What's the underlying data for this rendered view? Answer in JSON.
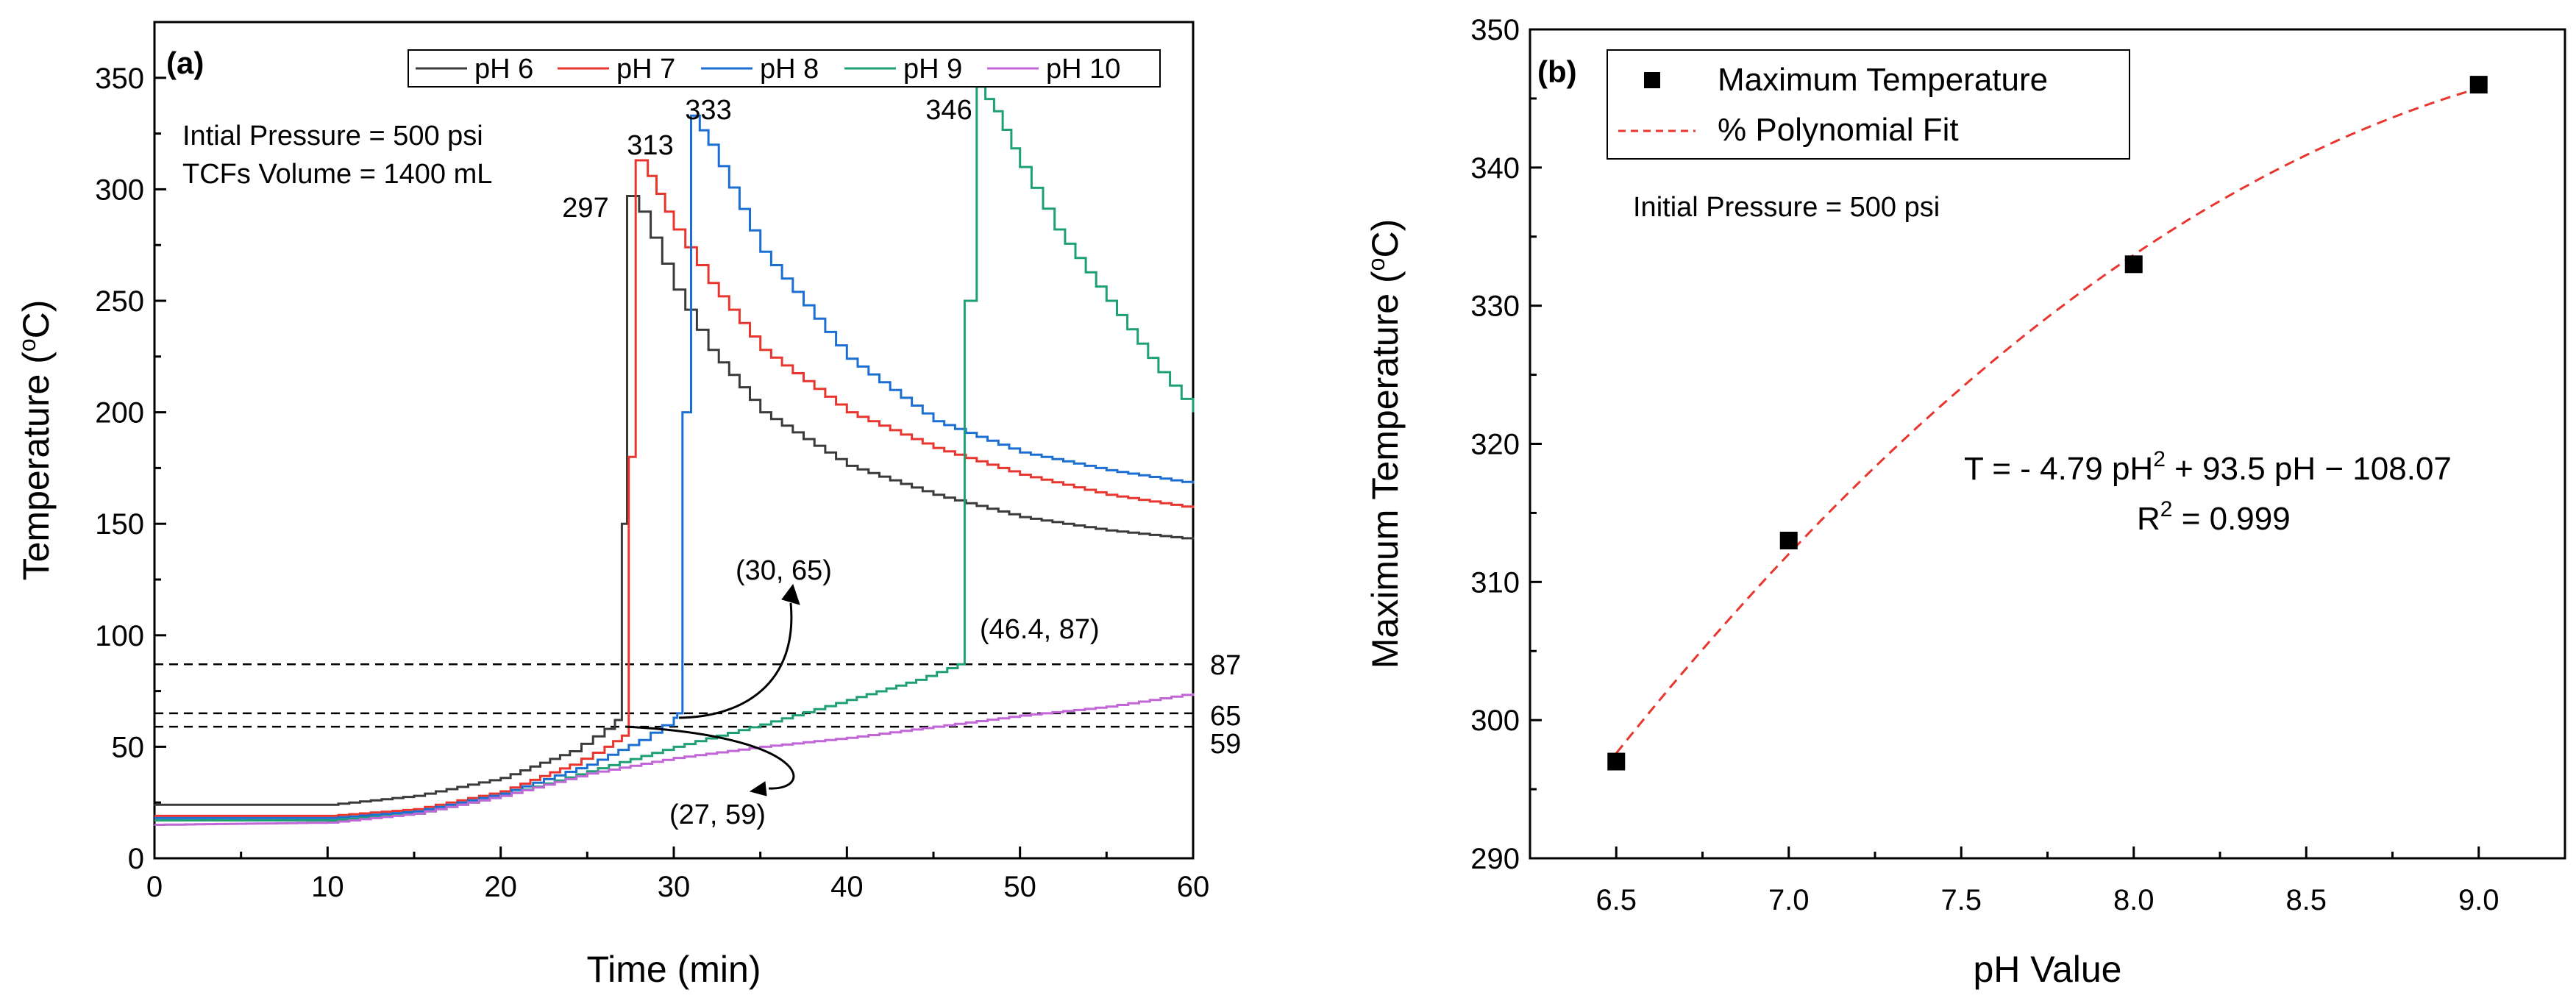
{
  "chart_data": [
    {
      "type": "line",
      "panel": "(a)",
      "xlabel": "Time (min)",
      "ylabel": "Temperature (°C)",
      "xlim": [
        0,
        60
      ],
      "ylim": [
        0,
        375
      ],
      "xticks": [
        0,
        10,
        20,
        30,
        40,
        50,
        60
      ],
      "yticks": [
        0,
        50,
        100,
        150,
        200,
        250,
        300,
        350
      ],
      "info": [
        "Intial Pressure = 500 psi",
        "TCFs Volume = 1400 mL"
      ],
      "legend": [
        "pH 6",
        "pH 7",
        "pH 8",
        "pH 9",
        "pH 10"
      ],
      "reference_lines": [
        87,
        65,
        59
      ],
      "annotations": [
        {
          "text": "297",
          "x": 26.2,
          "y": 297
        },
        {
          "text": "313",
          "x": 27.0,
          "y": 313
        },
        {
          "text": "333",
          "x": 33.0,
          "y": 333
        },
        {
          "text": "346",
          "x": 45.5,
          "y": 346
        },
        {
          "text": "(30, 65)",
          "x": 30,
          "y": 65
        },
        {
          "text": "(46.4, 87)",
          "x": 46.4,
          "y": 87
        },
        {
          "text": "(27, 59)",
          "x": 27,
          "y": 59
        }
      ],
      "series": [
        {
          "name": "pH 6",
          "color": "#3a3a3a",
          "points": [
            [
              0,
              24
            ],
            [
              10,
              24
            ],
            [
              15,
              28
            ],
            [
              20,
              36
            ],
            [
              24,
              48
            ],
            [
              26,
              58
            ],
            [
              26.6,
              62
            ],
            [
              27,
              150
            ],
            [
              27.3,
              297
            ],
            [
              28,
              290
            ],
            [
              30,
              255
            ],
            [
              32,
              228
            ],
            [
              35,
              200
            ],
            [
              40,
              176
            ],
            [
              45,
              163
            ],
            [
              50,
              153
            ],
            [
              55,
              147
            ],
            [
              60,
              143
            ]
          ]
        },
        {
          "name": "pH 7",
          "color": "#e8352e",
          "points": [
            [
              0,
              19
            ],
            [
              10,
              19
            ],
            [
              15,
              22
            ],
            [
              20,
              30
            ],
            [
              24,
              42
            ],
            [
              26,
              50
            ],
            [
              27,
              55
            ],
            [
              27.4,
              180
            ],
            [
              27.8,
              313
            ],
            [
              28.5,
              306
            ],
            [
              30,
              282
            ],
            [
              32,
              258
            ],
            [
              35,
              228
            ],
            [
              40,
              200
            ],
            [
              45,
              184
            ],
            [
              50,
              172
            ],
            [
              55,
              163
            ],
            [
              60,
              157
            ]
          ]
        },
        {
          "name": "pH 8",
          "color": "#1c6fd2",
          "points": [
            [
              0,
              18
            ],
            [
              10,
              18
            ],
            [
              15,
              21
            ],
            [
              20,
              29
            ],
            [
              25,
              42
            ],
            [
              28,
              53
            ],
            [
              30,
              63
            ],
            [
              30.2,
              65
            ],
            [
              30.5,
              200
            ],
            [
              31,
              333
            ],
            [
              32,
              320
            ],
            [
              35,
              272
            ],
            [
              40,
              224
            ],
            [
              45,
              196
            ],
            [
              50,
              182
            ],
            [
              55,
              174
            ],
            [
              60,
              168
            ]
          ]
        },
        {
          "name": "pH 9",
          "color": "#1ea073",
          "points": [
            [
              0,
              17
            ],
            [
              10,
              17
            ],
            [
              15,
              20
            ],
            [
              20,
              28
            ],
            [
              25,
              39
            ],
            [
              30,
              50
            ],
            [
              35,
              60
            ],
            [
              40,
              71
            ],
            [
              44,
              80
            ],
            [
              46.4,
              87
            ],
            [
              46.8,
              250
            ],
            [
              47.5,
              346
            ],
            [
              48.5,
              335
            ],
            [
              50,
              310
            ],
            [
              52,
              282
            ],
            [
              55,
              250
            ],
            [
              58,
              218
            ],
            [
              60,
              200
            ]
          ]
        },
        {
          "name": "pH 10",
          "color": "#c066d6",
          "points": [
            [
              0,
              15
            ],
            [
              10,
              16
            ],
            [
              15,
              20
            ],
            [
              20,
              28
            ],
            [
              25,
              38
            ],
            [
              30,
              45
            ],
            [
              35,
              50
            ],
            [
              40,
              54
            ],
            [
              45,
              59
            ],
            [
              50,
              64
            ],
            [
              55,
              68
            ],
            [
              60,
              74
            ]
          ]
        }
      ]
    },
    {
      "type": "scatter",
      "panel": "(b)",
      "xlabel": "pH Value",
      "ylabel": "Maximum Temperature (°C)",
      "xlim": [
        6.25,
        9.25
      ],
      "ylim": [
        290,
        350
      ],
      "xticks": [
        6.5,
        7.0,
        7.5,
        8.0,
        8.5,
        9.0
      ],
      "xtick_labels": [
        "6.5",
        "7.0",
        "7.5",
        "8.0",
        "8.5",
        "9.0"
      ],
      "yticks": [
        290,
        300,
        310,
        320,
        330,
        340,
        350
      ],
      "info": "Initial Pressure = 500 psi",
      "legend": [
        "Maximum Temperature",
        "% Polynomial Fit"
      ],
      "equation": {
        "lhs": "T = - 4.79 pH",
        "sup": "2",
        "rhs": " + 93.5 pH − 108.07"
      },
      "r2": {
        "base": "R",
        "sup": "2",
        "rest": " = 0.999"
      },
      "points": [
        [
          6.5,
          297
        ],
        [
          7.0,
          313
        ],
        [
          8.0,
          333
        ],
        [
          9.0,
          346
        ]
      ],
      "fit": {
        "a": -4.79,
        "b": 93.5,
        "c": -108.07,
        "shift": 0.3,
        "range": [
          6.5,
          9.0
        ],
        "color": "#e8352e"
      }
    }
  ]
}
